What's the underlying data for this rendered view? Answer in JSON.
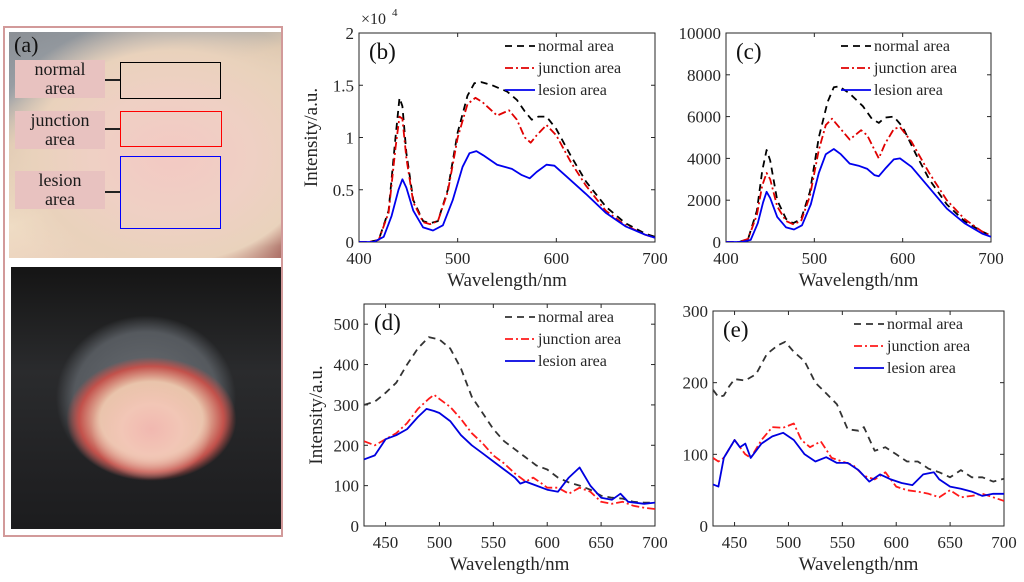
{
  "figure": {
    "panel_a": {
      "tag": "(a)",
      "labels": [
        {
          "line1": "normal",
          "line2": "area",
          "color": "#000000"
        },
        {
          "line1": "junction",
          "line2": "area",
          "color": "#ff0000"
        },
        {
          "line1": "lesion",
          "line2": "area",
          "color": "#0000ff"
        }
      ]
    }
  },
  "chart_data": [
    {
      "id": "b",
      "tag": "(b)",
      "type": "line",
      "xlabel": "Wavelength/nm",
      "ylabel": "Intensity/a.u.",
      "y_multiplier": "×10^4",
      "y_multiplier_base": "×10",
      "y_multiplier_exp": "4",
      "xlim": [
        400,
        700
      ],
      "ylim": [
        0,
        2
      ],
      "xticks": [
        400,
        500,
        600,
        700
      ],
      "yticks": [
        0,
        0.5,
        1,
        1.5,
        2
      ],
      "ytick_labels": [
        "0",
        "0.5",
        "1",
        "1.5",
        "2"
      ],
      "grid": false,
      "legend_position": "top-right",
      "series": [
        {
          "name": "normal area",
          "color": "#000000",
          "style": "dashed",
          "x": [
            400,
            410,
            420,
            430,
            437,
            441,
            444,
            448,
            455,
            465,
            472,
            480,
            490,
            500,
            510,
            517,
            524,
            535,
            550,
            560,
            568,
            575,
            582,
            590,
            600,
            615,
            630,
            650,
            670,
            690,
            700
          ],
          "y": [
            0,
            0,
            0.02,
            0.3,
            1.0,
            1.38,
            1.3,
            0.85,
            0.4,
            0.2,
            0.18,
            0.2,
            0.5,
            1.05,
            1.4,
            1.52,
            1.53,
            1.5,
            1.44,
            1.36,
            1.25,
            1.17,
            1.2,
            1.2,
            1.08,
            0.82,
            0.58,
            0.34,
            0.18,
            0.08,
            0.05
          ]
        },
        {
          "name": "junction area",
          "color": "#e00000",
          "style": "dashdot",
          "x": [
            400,
            410,
            420,
            430,
            437,
            441,
            444,
            448,
            455,
            465,
            472,
            480,
            490,
            500,
            510,
            518,
            525,
            540,
            552,
            560,
            568,
            574,
            580,
            590,
            600,
            615,
            630,
            650,
            670,
            690,
            700
          ],
          "y": [
            0,
            0,
            0.02,
            0.28,
            0.9,
            1.2,
            1.18,
            0.8,
            0.38,
            0.19,
            0.17,
            0.2,
            0.48,
            1.0,
            1.32,
            1.38,
            1.34,
            1.21,
            1.26,
            1.17,
            1.0,
            0.95,
            1.02,
            1.12,
            1.02,
            0.76,
            0.54,
            0.3,
            0.16,
            0.07,
            0.04
          ]
        },
        {
          "name": "lesion area",
          "color": "#0000ee",
          "style": "solid",
          "x": [
            400,
            415,
            425,
            433,
            440,
            444,
            448,
            455,
            465,
            475,
            485,
            495,
            505,
            512,
            519,
            526,
            540,
            555,
            565,
            573,
            580,
            590,
            598,
            610,
            630,
            650,
            670,
            690,
            700
          ],
          "y": [
            0,
            0,
            0.05,
            0.25,
            0.5,
            0.6,
            0.52,
            0.3,
            0.14,
            0.11,
            0.16,
            0.4,
            0.72,
            0.85,
            0.87,
            0.83,
            0.74,
            0.7,
            0.64,
            0.61,
            0.67,
            0.74,
            0.73,
            0.63,
            0.46,
            0.28,
            0.15,
            0.07,
            0.04
          ]
        }
      ]
    },
    {
      "id": "c",
      "tag": "(c)",
      "type": "line",
      "xlabel": "Wavelength/nm",
      "ylabel": "",
      "xlim": [
        400,
        700
      ],
      "ylim": [
        0,
        10000
      ],
      "xticks": [
        400,
        500,
        600,
        700
      ],
      "yticks": [
        0,
        2000,
        4000,
        6000,
        8000,
        10000
      ],
      "ytick_labels": [
        "0",
        "2000",
        "4000",
        "6000",
        "8000",
        "10000"
      ],
      "grid": false,
      "legend_position": "top-right",
      "series": [
        {
          "name": "normal area",
          "color": "#000000",
          "style": "dashed",
          "x": [
            400,
            415,
            425,
            435,
            441,
            446,
            450,
            458,
            468,
            476,
            485,
            495,
            505,
            515,
            522,
            528,
            540,
            555,
            565,
            573,
            580,
            590,
            600,
            615,
            630,
            650,
            670,
            690,
            700
          ],
          "y": [
            0,
            0,
            150,
            1500,
            3400,
            4400,
            3900,
            2000,
            1100,
            900,
            1100,
            2400,
            5000,
            6700,
            7400,
            7450,
            7100,
            6500,
            5900,
            5700,
            5950,
            6000,
            5500,
            4200,
            3000,
            1800,
            1000,
            500,
            300
          ]
        },
        {
          "name": "junction area",
          "color": "#e00000",
          "style": "dashdot",
          "x": [
            400,
            415,
            425,
            435,
            441,
            446,
            450,
            458,
            468,
            476,
            485,
            495,
            505,
            513,
            520,
            530,
            540,
            553,
            560,
            567,
            573,
            580,
            590,
            597,
            610,
            630,
            650,
            670,
            690,
            700
          ],
          "y": [
            0,
            0,
            150,
            1300,
            2700,
            3300,
            3000,
            1700,
            1000,
            850,
            1000,
            2200,
            4400,
            5600,
            5900,
            5400,
            4900,
            5350,
            5100,
            4500,
            4000,
            4700,
            5400,
            5500,
            4800,
            3300,
            2000,
            1100,
            500,
            300
          ]
        },
        {
          "name": "lesion area",
          "color": "#0000ee",
          "style": "solid",
          "x": [
            400,
            418,
            428,
            436,
            442,
            446,
            450,
            458,
            468,
            477,
            486,
            496,
            505,
            513,
            522,
            530,
            540,
            550,
            560,
            568,
            573,
            580,
            590,
            597,
            610,
            630,
            650,
            670,
            690,
            700
          ],
          "y": [
            0,
            0,
            100,
            900,
            1900,
            2400,
            2100,
            1200,
            700,
            600,
            800,
            1800,
            3300,
            4200,
            4450,
            4200,
            3750,
            3650,
            3500,
            3200,
            3150,
            3500,
            3950,
            4000,
            3600,
            2600,
            1600,
            900,
            400,
            250
          ]
        }
      ]
    },
    {
      "id": "d",
      "tag": "(d)",
      "type": "line",
      "xlabel": "Wavelength/nm",
      "ylabel": "Intensity/a.u.",
      "xlim": [
        430,
        700
      ],
      "ylim": [
        0,
        550
      ],
      "xticks": [
        450,
        500,
        550,
        600,
        650,
        700
      ],
      "yticks": [
        0,
        100,
        200,
        300,
        400,
        500
      ],
      "ytick_labels": [
        "0",
        "100",
        "200",
        "300",
        "400",
        "500"
      ],
      "grid": false,
      "legend_position": "top-right",
      "series": [
        {
          "name": "normal area",
          "color": "#333333",
          "style": "dashed",
          "x": [
            430,
            440,
            450,
            460,
            470,
            480,
            490,
            500,
            510,
            520,
            530,
            540,
            550,
            560,
            570,
            580,
            590,
            600,
            610,
            620,
            630,
            640,
            650,
            660,
            670,
            680,
            690,
            700
          ],
          "y": [
            300,
            308,
            330,
            355,
            400,
            440,
            468,
            462,
            440,
            390,
            320,
            280,
            240,
            210,
            190,
            170,
            150,
            140,
            120,
            108,
            100,
            90,
            75,
            70,
            68,
            60,
            58,
            58
          ]
        },
        {
          "name": "junction area",
          "color": "#ff1a1a",
          "style": "dashdot",
          "x": [
            430,
            440,
            450,
            460,
            470,
            480,
            490,
            495,
            500,
            510,
            520,
            530,
            540,
            550,
            560,
            570,
            580,
            587,
            595,
            600,
            610,
            620,
            630,
            640,
            650,
            660,
            670,
            680,
            690,
            700
          ],
          "y": [
            210,
            200,
            215,
            230,
            255,
            290,
            315,
            325,
            315,
            295,
            265,
            230,
            205,
            175,
            155,
            130,
            110,
            120,
            105,
            95,
            95,
            80,
            95,
            85,
            60,
            55,
            60,
            50,
            45,
            42
          ]
        },
        {
          "name": "lesion area",
          "color": "#0000e0",
          "style": "solid",
          "x": [
            430,
            440,
            450,
            460,
            470,
            480,
            488,
            495,
            500,
            510,
            520,
            530,
            540,
            550,
            560,
            570,
            575,
            580,
            590,
            600,
            610,
            620,
            630,
            640,
            650,
            660,
            668,
            675,
            690,
            700
          ],
          "y": [
            165,
            175,
            215,
            225,
            240,
            270,
            290,
            285,
            280,
            260,
            225,
            200,
            180,
            160,
            140,
            120,
            105,
            110,
            100,
            90,
            85,
            120,
            145,
            100,
            70,
            65,
            80,
            60,
            55,
            58
          ]
        }
      ]
    },
    {
      "id": "e",
      "tag": "(e)",
      "type": "line",
      "xlabel": "Wavelength/nm",
      "ylabel": "",
      "xlim": [
        430,
        700
      ],
      "ylim": [
        0,
        300
      ],
      "xticks": [
        450,
        500,
        550,
        600,
        650,
        700
      ],
      "yticks": [
        0,
        100,
        200,
        300
      ],
      "ytick_labels": [
        "0",
        "100",
        "200",
        "300"
      ],
      "grid": false,
      "legend_position": "top-right",
      "series": [
        {
          "name": "normal area",
          "color": "#333333",
          "style": "dashed",
          "x": [
            430,
            435,
            440,
            445,
            450,
            460,
            470,
            480,
            490,
            497,
            505,
            515,
            525,
            535,
            545,
            555,
            565,
            570,
            580,
            590,
            600,
            610,
            620,
            630,
            640,
            650,
            660,
            670,
            680,
            690,
            700
          ],
          "y": [
            190,
            180,
            182,
            195,
            205,
            203,
            212,
            240,
            252,
            257,
            243,
            230,
            200,
            185,
            170,
            135,
            133,
            138,
            105,
            110,
            100,
            90,
            90,
            80,
            75,
            68,
            78,
            68,
            68,
            62,
            66
          ]
        },
        {
          "name": "junction area",
          "color": "#ff1a1a",
          "style": "dashdot",
          "x": [
            430,
            435,
            440,
            450,
            460,
            465,
            475,
            485,
            495,
            505,
            512,
            520,
            530,
            540,
            550,
            560,
            570,
            580,
            590,
            600,
            610,
            620,
            630,
            640,
            650,
            660,
            670,
            680,
            690,
            700
          ],
          "y": [
            95,
            90,
            95,
            120,
            100,
            95,
            120,
            138,
            137,
            143,
            120,
            110,
            118,
            95,
            90,
            85,
            70,
            65,
            75,
            55,
            50,
            48,
            45,
            40,
            50,
            40,
            42,
            45,
            40,
            35
          ]
        },
        {
          "name": "lesion area",
          "color": "#0000e0",
          "style": "solid",
          "x": [
            430,
            435,
            440,
            450,
            455,
            460,
            465,
            475,
            485,
            495,
            505,
            515,
            525,
            535,
            545,
            555,
            565,
            575,
            585,
            595,
            605,
            615,
            625,
            635,
            640,
            650,
            660,
            670,
            680,
            690,
            700
          ],
          "y": [
            58,
            55,
            95,
            120,
            110,
            115,
            95,
            115,
            125,
            130,
            120,
            100,
            90,
            96,
            88,
            88,
            78,
            62,
            72,
            65,
            60,
            57,
            72,
            75,
            65,
            55,
            52,
            48,
            42,
            45,
            45
          ]
        }
      ]
    }
  ]
}
